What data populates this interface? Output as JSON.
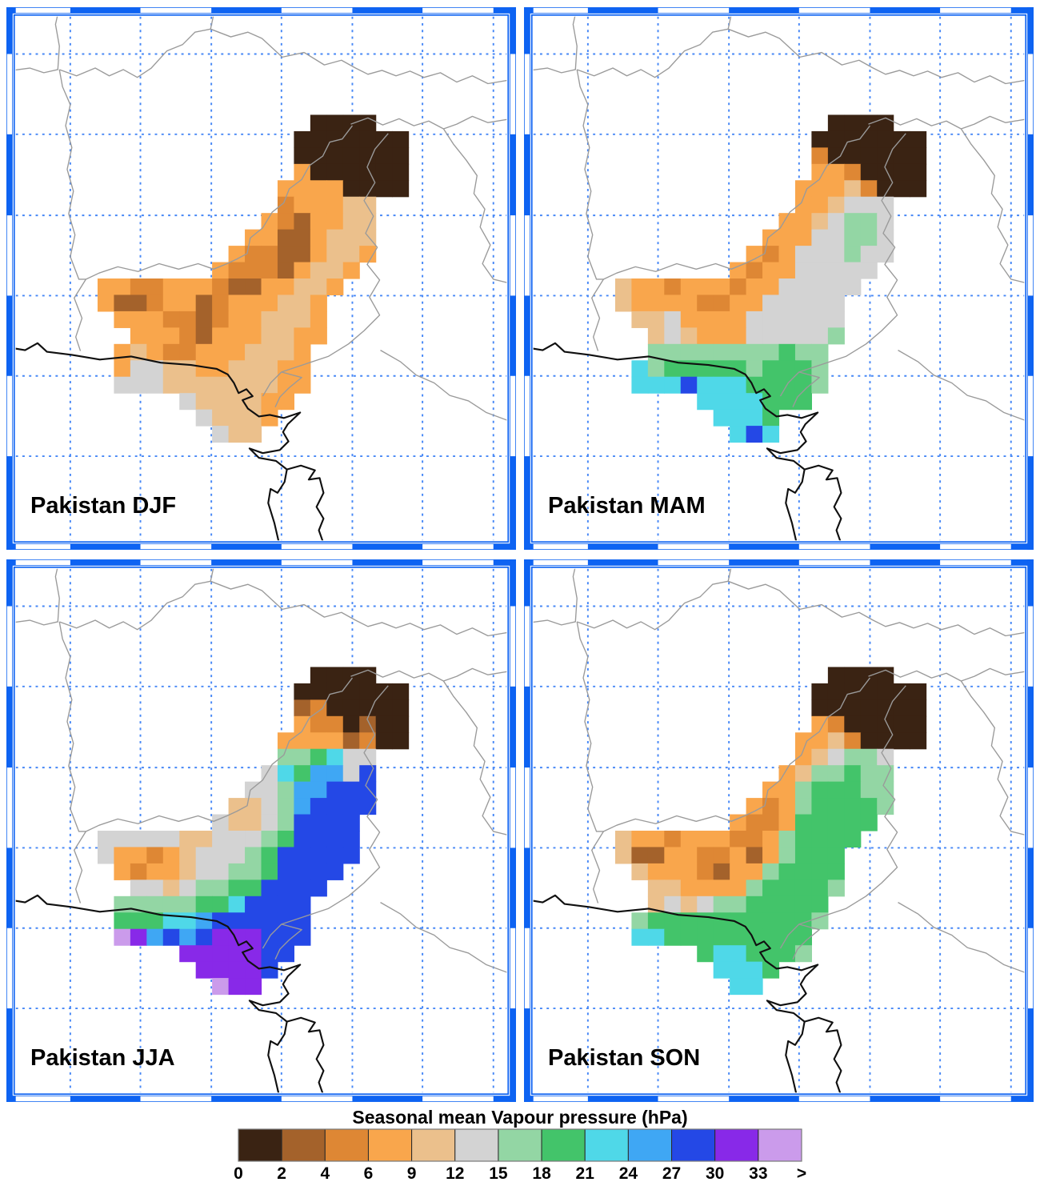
{
  "figure": {
    "background": "#FFFFFF"
  },
  "colors": {
    "frame_blue": "#0E63F2",
    "grid_dash_blue": "#4687F6",
    "border_gray": "#9A9A9A",
    "coast_black": "#101010"
  },
  "chart_data": {
    "type": "heatmap",
    "title": "Seasonal mean Vapour pressure (hPa)",
    "unit": "hPa",
    "map_region": "Pakistan",
    "legend_position": "bottom",
    "grid_on": true,
    "bin_labels": [
      "0",
      "2",
      "4",
      "6",
      "9",
      "12",
      "15",
      "18",
      "21",
      "24",
      "27",
      "30",
      "33",
      ">"
    ],
    "bin_colors": [
      "#3A2313",
      "#A4622B",
      "#DE8734",
      "#F9A64C",
      "#EBC08C",
      "#D3D3D3",
      "#93D6A4",
      "#43C46A",
      "#4FD8E8",
      "#3FA7F4",
      "#2448E6",
      "#8829E8",
      "#CB9BEB"
    ],
    "row_offset": 6,
    "cols": 30,
    "cell_size": 21,
    "series": [
      {
        "name": "Pakistan DJF",
        "grid": [
          "..................0000........",
          ".................0000000......",
          ".................0000000......",
          ".................3000000......",
          "................33330000......",
          "................233344........",
          "...............3213344........",
          "..............33113444........",
          ".............322113443........",
          "............322213443.........",
          ".....332233321133443..........",
          ".....31123312333443...........",
          "......3332212334443...........",
          ".......333213334433...........",
          "......343223334443............",
          "......355443344433............",
          "......555444444433............",
          "..........5444433.............",
          "...........54443..............",
          "............544..............."
        ]
      },
      {
        "name": "Pakistan MAM",
        "grid": [
          "..................0000........",
          ".................0000000......",
          ".................2000000......",
          ".................3320000......",
          "................33342000......",
          "................334555........",
          "...............3345665........",
          "..............33355665........",
          ".............323555655........",
          "............323355555.........",
          ".....433233323355555..........",
          ".....43333223355555...........",
          "......4453333555555...........",
          ".......454333555556...........",
          ".......66666666766............",
          "......867777767776............",
          "......888A88877776............",
          "..........8888777.............",
          "...........8887...............",
          "............8A8..............."
        ]
      },
      {
        "name": "Pakistan JJA",
        "grid": [
          "..................0000........",
          ".................0000000......",
          ".................1200000......",
          ".................3220100......",
          "................33331200......",
          "................667855........",
          "...............587995A........",
          "..............55699AAA........",
          ".............44569AAAA........",
          "............54456AAAA.........",
          ".....555554455567AAAA.........",
          ".....53323455567AAAAA.........",
          "......3233455667AAAA..........",
          ".......55456677AAAA...........",
          "......66666778AAAA............",
          "......777889AAAAAA............",
          "......CB9A9ABBBAAA............",
          "..........BBBBBAA.............",
          "...........BBBBA..............",
          "............CBB..............."
        ]
      },
      {
        "name": "Pakistan SON",
        "grid": [
          "..................0000........",
          ".................0000000......",
          ".................0000000......",
          ".................3200000......",
          "................33420000......",
          "................345665........",
          "...............3466766........",
          "..............33677766........",
          ".............323677776........",
          "............322377777.........",
          ".....433233322367777..........",
          ".....41133223136777...........",
          "......4333213367777...........",
          ".......443333677776...........",
          ".......45456677777............",
          "......677777777776............",
          "......88777777777.............",
          "..........7887776.............",
          "...........8887...............",
          "............88................"
        ]
      }
    ]
  }
}
